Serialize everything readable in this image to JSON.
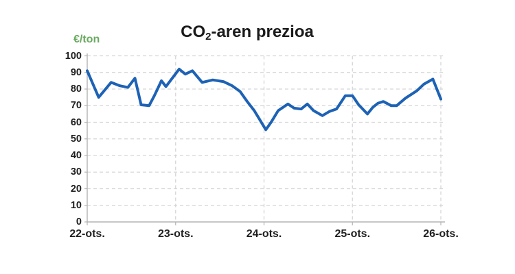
{
  "chart_data": {
    "type": "line",
    "title": "CO2-aren prezioa",
    "title_parts": {
      "prefix": "CO",
      "sub": "2",
      "suffix": "-aren prezioa"
    },
    "y_unit": "€/ton",
    "x_tick_labels": [
      "22-ots.",
      "23-ots.",
      "24-ots.",
      "25-ots.",
      "26-ots."
    ],
    "y_ticks": [
      0,
      10,
      20,
      30,
      40,
      50,
      60,
      70,
      80,
      90,
      100
    ],
    "ylim": [
      0,
      100
    ],
    "xlim_days": [
      0,
      4
    ],
    "grid": "dashed-horizontal-and-vertical",
    "legend": "none",
    "series": [
      {
        "points": [
          [
            0.0,
            91
          ],
          [
            0.13,
            75
          ],
          [
            0.27,
            84
          ],
          [
            0.37,
            82
          ],
          [
            0.46,
            81
          ],
          [
            0.54,
            86.5
          ],
          [
            0.61,
            70.5
          ],
          [
            0.7,
            70
          ],
          [
            0.76,
            76
          ],
          [
            0.84,
            85
          ],
          [
            0.89,
            81.5
          ],
          [
            1.04,
            92
          ],
          [
            1.11,
            89
          ],
          [
            1.19,
            91
          ],
          [
            1.3,
            84
          ],
          [
            1.42,
            85.5
          ],
          [
            1.54,
            84.5
          ],
          [
            1.64,
            82
          ],
          [
            1.73,
            78.5
          ],
          [
            1.81,
            72.5
          ],
          [
            1.89,
            67
          ],
          [
            2.02,
            55.5
          ],
          [
            2.08,
            60
          ],
          [
            2.16,
            67
          ],
          [
            2.27,
            71
          ],
          [
            2.34,
            68.5
          ],
          [
            2.42,
            68
          ],
          [
            2.49,
            71
          ],
          [
            2.56,
            67
          ],
          [
            2.66,
            64
          ],
          [
            2.74,
            66.5
          ],
          [
            2.82,
            68
          ],
          [
            2.92,
            76
          ],
          [
            3.0,
            76
          ],
          [
            3.07,
            70.5
          ],
          [
            3.17,
            65
          ],
          [
            3.23,
            69
          ],
          [
            3.29,
            71.5
          ],
          [
            3.35,
            72.5
          ],
          [
            3.44,
            70
          ],
          [
            3.5,
            70
          ],
          [
            3.6,
            74.5
          ],
          [
            3.73,
            79
          ],
          [
            3.81,
            83
          ],
          [
            3.91,
            86
          ],
          [
            4.0,
            74
          ]
        ]
      }
    ],
    "colors": {
      "line": "#1d62b5",
      "unit_label": "#68a95f",
      "grid": "#d5d5d5",
      "axis": "#b3b3b3",
      "tick_text": "#1f1f1f",
      "title_text": "#1a1a1a",
      "background": "#ffffff"
    }
  }
}
